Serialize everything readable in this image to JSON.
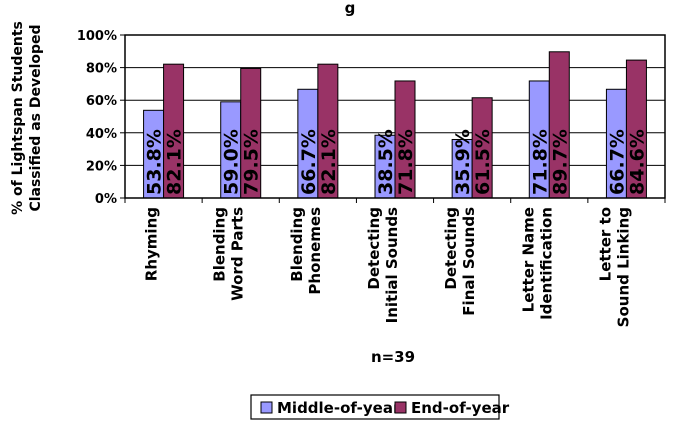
{
  "chart_data": {
    "type": "bar",
    "title": "",
    "title_visible_fragment": "g",
    "ylabel_lines": [
      "% of Lightspan Students",
      "Classified as Developed"
    ],
    "xlabel": "n=39",
    "ylim": [
      0,
      100
    ],
    "yticks": [
      "0%",
      "20%",
      "40%",
      "60%",
      "80%",
      "100%"
    ],
    "categories": [
      [
        "Rhyming"
      ],
      [
        "Blending",
        "Word Parts"
      ],
      [
        "Blending",
        "Phonemes"
      ],
      [
        "Detecting",
        "Initial Sounds"
      ],
      [
        "Detecting",
        "Final Sounds"
      ],
      [
        "Letter Name",
        "Identification"
      ],
      [
        "Letter to",
        "Sound Linking"
      ]
    ],
    "series": [
      {
        "name": "Middle-of-year",
        "color": "#9999ff",
        "values": [
          53.8,
          59.0,
          66.7,
          38.5,
          35.9,
          71.8,
          66.7
        ],
        "labels": [
          "53.8%",
          "59.0%",
          "66.7%",
          "38.5%",
          "35.9%",
          "71.8%",
          "66.7%"
        ]
      },
      {
        "name": "End-of-year",
        "color": "#993366",
        "values": [
          82.1,
          79.5,
          82.1,
          71.8,
          61.5,
          89.7,
          84.6
        ],
        "labels": [
          "82.1%",
          "79.5%",
          "82.1%",
          "71.8%",
          "61.5%",
          "89.7%",
          "84.6%"
        ]
      }
    ],
    "grid": true,
    "legend_position": "bottom"
  }
}
